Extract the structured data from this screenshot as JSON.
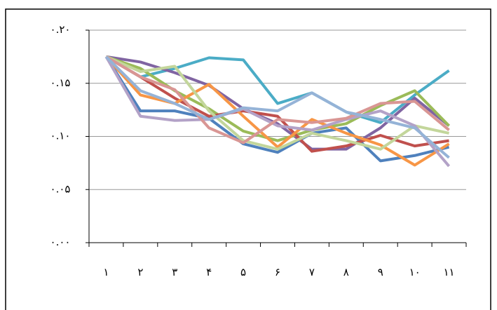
{
  "chart_data": {
    "type": "line",
    "categories": [
      "١",
      "٢",
      "٣",
      "۴",
      "۵",
      "۶",
      "٧",
      "٨",
      "٩",
      "١٠",
      "١١"
    ],
    "ylim": [
      0,
      0.2
    ],
    "yticks": [
      {
        "value": 0,
        "label": "٠.٠٠"
      },
      {
        "value": 0.05,
        "label": "٠.٠۵"
      },
      {
        "value": 0.1,
        "label": "٠.١٠"
      },
      {
        "value": 0.15,
        "label": "٠.١۵"
      },
      {
        "value": 0.2,
        "label": "٠.٢٠"
      }
    ],
    "grid": true,
    "series": [
      {
        "color": "#4bacc6",
        "values": [
          0.175,
          0.156,
          0.164,
          0.174,
          0.172,
          0.131,
          0.141,
          0.123,
          0.113,
          0.139,
          0.162
        ]
      },
      {
        "color": "#8064a2",
        "values": [
          0.175,
          0.17,
          0.16,
          0.148,
          0.126,
          0.112,
          0.088,
          0.088,
          0.108,
          0.136,
          0.11
        ]
      },
      {
        "color": "#9bbb59",
        "values": [
          0.175,
          0.164,
          0.143,
          0.126,
          0.105,
          0.096,
          0.106,
          0.112,
          0.129,
          0.143,
          0.11
        ]
      },
      {
        "color": "#4f81bd",
        "values": [
          0.175,
          0.124,
          0.124,
          0.117,
          0.093,
          0.085,
          0.103,
          0.108,
          0.077,
          0.082,
          0.09
        ]
      },
      {
        "color": "#c0504d",
        "values": [
          0.175,
          0.156,
          0.136,
          0.119,
          0.124,
          0.119,
          0.086,
          0.091,
          0.101,
          0.091,
          0.096
        ]
      },
      {
        "color": "#f79646",
        "values": [
          0.175,
          0.139,
          0.131,
          0.149,
          0.119,
          0.09,
          0.116,
          0.103,
          0.092,
          0.073,
          0.093
        ]
      },
      {
        "color": "#c3d69b",
        "values": [
          0.175,
          0.161,
          0.166,
          0.124,
          0.096,
          0.088,
          0.103,
          0.096,
          0.088,
          0.11,
          0.103
        ]
      },
      {
        "color": "#b3a2c7",
        "values": [
          0.175,
          0.119,
          0.115,
          0.116,
          0.126,
          0.11,
          0.106,
          0.116,
          0.124,
          0.11,
          0.072
        ]
      },
      {
        "color": "#d99694",
        "values": [
          0.175,
          0.156,
          0.144,
          0.108,
          0.094,
          0.116,
          0.113,
          0.117,
          0.131,
          0.133,
          0.106
        ]
      },
      {
        "color": "#95b3d7",
        "values": [
          0.175,
          0.143,
          0.131,
          0.116,
          0.127,
          0.124,
          0.141,
          0.123,
          0.116,
          0.108,
          0.08
        ]
      }
    ]
  }
}
